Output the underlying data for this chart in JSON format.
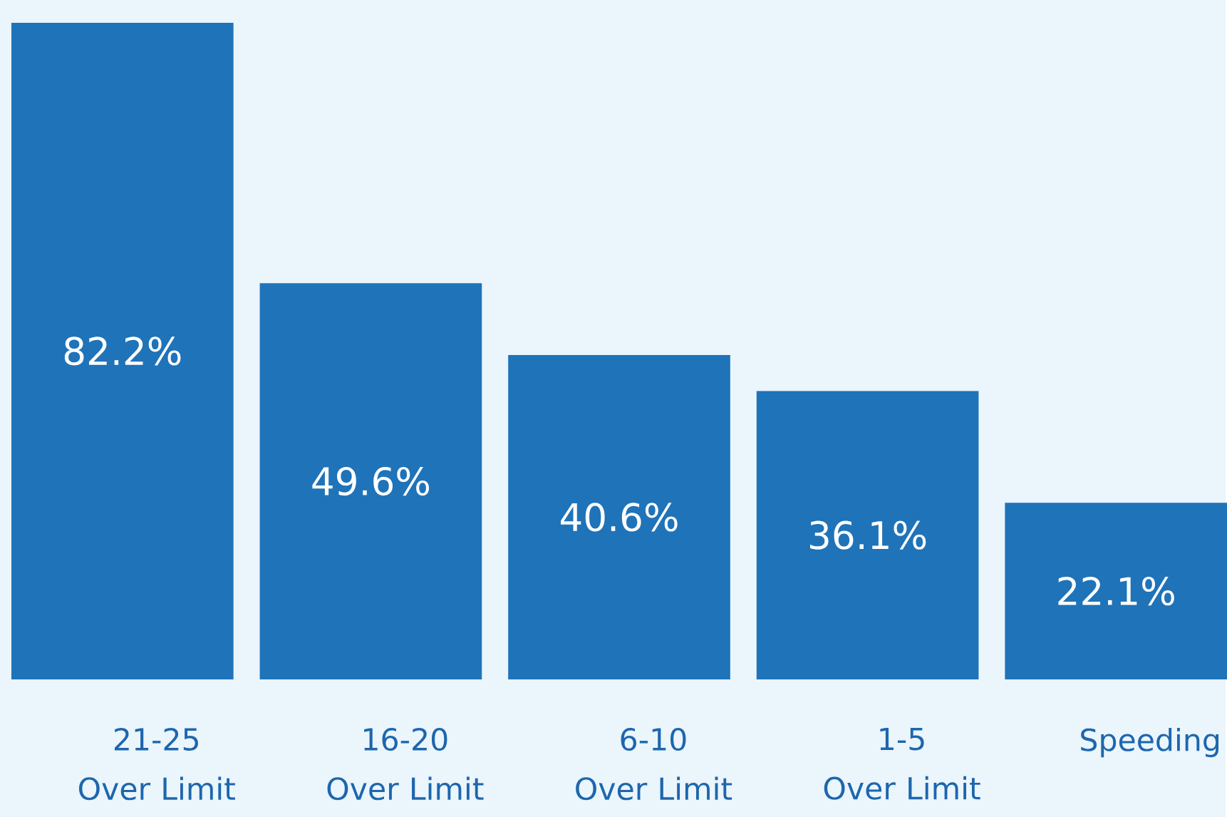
{
  "chart_data": {
    "type": "bar",
    "categories": [
      "21-25 Over Limit",
      "16-20 Over Limit",
      "6-10 Over Limit",
      "1-5 Over Limit",
      "Speeding"
    ],
    "values": [
      82.2,
      49.6,
      40.6,
      36.1,
      22.1
    ],
    "value_labels": [
      "82.2%",
      "49.6%",
      "40.6%",
      "36.1%",
      "22.1%"
    ],
    "color": "#1f73b9"
  }
}
